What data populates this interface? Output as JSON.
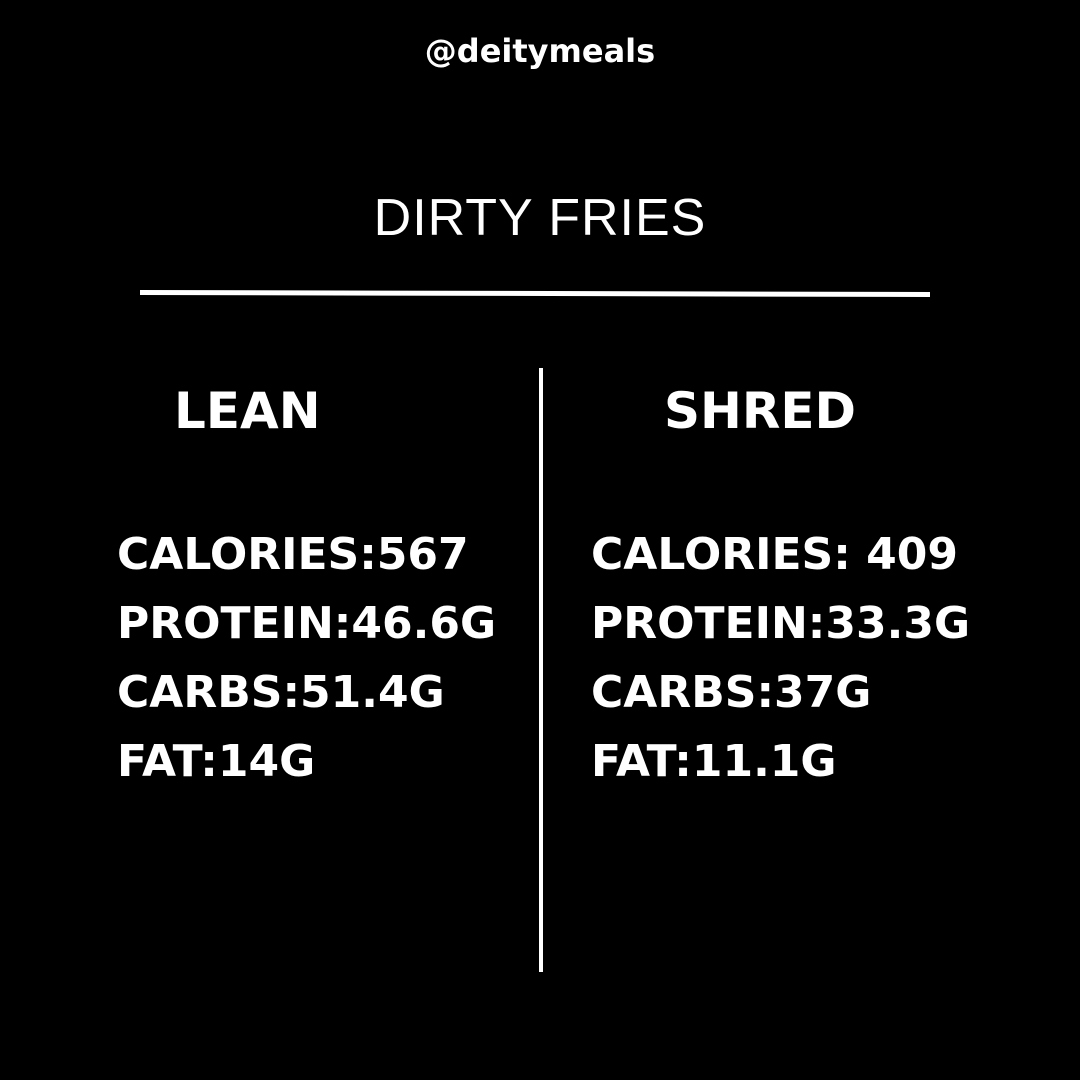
{
  "handle": "@deitymeals",
  "title": "DIRTY FRIES",
  "lean": {
    "heading": "LEAN",
    "stats": [
      "CALORIES:567",
      "PROTEIN:46.6G",
      "CARBS:51.4G",
      "FAT:14G"
    ]
  },
  "shred": {
    "heading": "SHRED",
    "stats": [
      "CALORIES: 409",
      "PROTEIN:33.3G",
      "CARBS:37G",
      "FAT:11.1G"
    ]
  }
}
